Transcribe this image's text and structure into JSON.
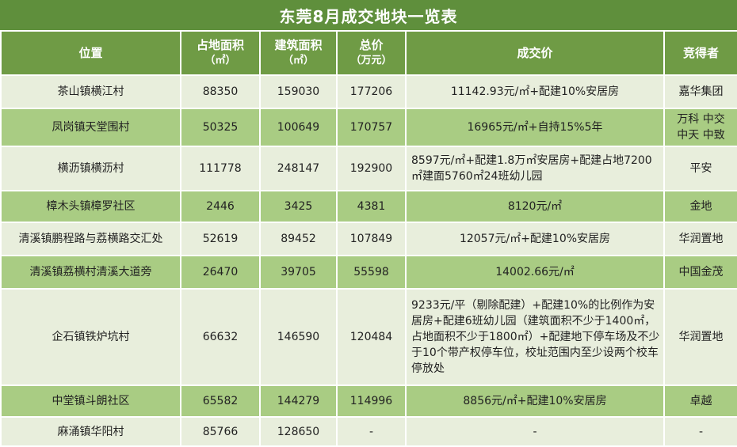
{
  "title": "东莞8月成交地块一览表",
  "headers": {
    "location": "位置",
    "land_area": "占地面积",
    "land_area_unit": "（㎡）",
    "build_area": "建筑面积",
    "build_area_unit": "（㎡）",
    "total_price": "总价",
    "total_price_unit": "（万元）",
    "deal_price": "成交价",
    "bidder": "竞得者"
  },
  "rows": [
    {
      "location": "茶山镇横江村",
      "land_area": "88350",
      "build_area": "159030",
      "total_price": "177206",
      "deal_price": "11142.93元/㎡+配建10%安居房",
      "bidder": "嘉华集团",
      "bidder2": ""
    },
    {
      "location": "凤岗镇天堂围村",
      "land_area": "50325",
      "build_area": "100649",
      "total_price": "170757",
      "deal_price": "16965元/㎡+自持15%5年",
      "bidder": "万科 中交",
      "bidder2": "中天 中致"
    },
    {
      "location": "横沥镇横沥村",
      "land_area": "111778",
      "build_area": "248147",
      "total_price": "192900",
      "deal_price": "8597元/㎡+配建1.8万㎡安居房+配建占地7200㎡建面5760㎡24班幼儿园",
      "bidder": "平安",
      "bidder2": ""
    },
    {
      "location": "樟木头镇樟罗社区",
      "land_area": "2446",
      "build_area": "3425",
      "total_price": "4381",
      "deal_price": "8120元/㎡",
      "bidder": "金地",
      "bidder2": ""
    },
    {
      "location": "清溪镇鹏程路与荔横路交汇处",
      "land_area": "52619",
      "build_area": "89452",
      "total_price": "107849",
      "deal_price": "12057元/㎡+配建10%安居房",
      "bidder": "华润置地",
      "bidder2": ""
    },
    {
      "location": "清溪镇荔横村清溪大道旁",
      "land_area": "26470",
      "build_area": "39705",
      "total_price": "55598",
      "deal_price": "14002.66元/㎡",
      "bidder": "中国金茂",
      "bidder2": ""
    },
    {
      "location": "企石镇铁炉坑村",
      "land_area": "66632",
      "build_area": "146590",
      "total_price": "120484",
      "deal_price": "9233元/平（剔除配建）+配建10%的比例作为安居房+配建6班幼儿园（建筑面积不少于1400㎡，占地面积不少于1800㎡）+配建地下停车场及不少于10个带产权停车位，校址范围内至少设两个校车停放处",
      "bidder": "华润置地",
      "bidder2": ""
    },
    {
      "location": "中堂镇斗朗社区",
      "land_area": "65582",
      "build_area": "144279",
      "total_price": "114996",
      "deal_price": "8856元/㎡+配建10%安居房",
      "bidder": "卓越",
      "bidder2": ""
    },
    {
      "location": "麻涌镇华阳村",
      "land_area": "85766",
      "build_area": "128650",
      "total_price": "-",
      "deal_price": "-",
      "bidder": "-",
      "bidder2": ""
    }
  ]
}
